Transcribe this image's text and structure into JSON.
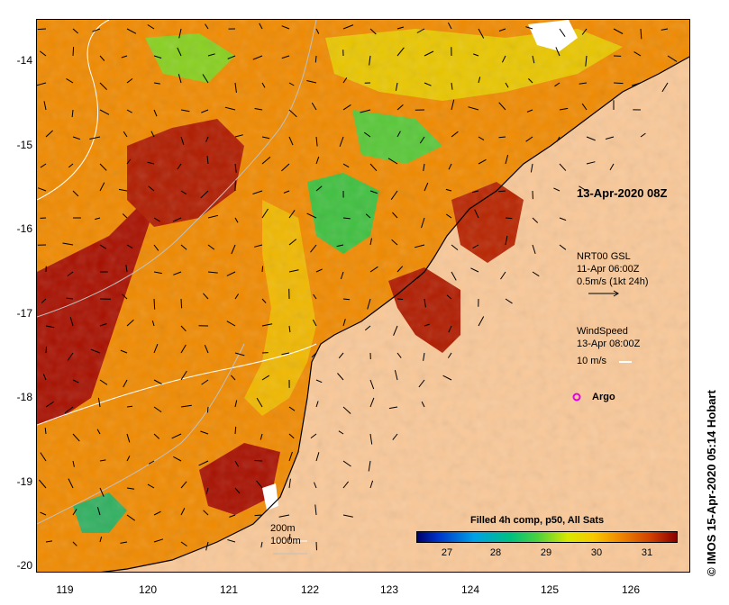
{
  "title": "13-Apr-2020 08Z",
  "current_legend": {
    "line1": "NRT00 GSL",
    "line2": "11-Apr 06:00Z",
    "line3": "0.5m/s (1kt 24h)"
  },
  "wind_legend": {
    "line1": "WindSpeed",
    "line2": "13-Apr 08:00Z",
    "line3": "10 m/s"
  },
  "argo_label": "Argo",
  "contours": {
    "c200": "200m",
    "c1000": "1000m"
  },
  "colorbar": {
    "title": "Filled 4h comp, p50, All Sats",
    "ticks": [
      "27",
      "28",
      "29",
      "30",
      "31"
    ]
  },
  "y_ticks": [
    "-14",
    "-15",
    "-16",
    "-17",
    "-18",
    "-19",
    "-20"
  ],
  "x_ticks": [
    "119",
    "120",
    "121",
    "122",
    "123",
    "124",
    "125",
    "126"
  ],
  "credit": "© IMOS 15-Apr-2020 05:14 Hobart",
  "colors": {
    "land": "#f9c898",
    "argo": "#e000e0",
    "warm": "#8a0000",
    "mid": "#f08800",
    "cool": "#48d040"
  }
}
